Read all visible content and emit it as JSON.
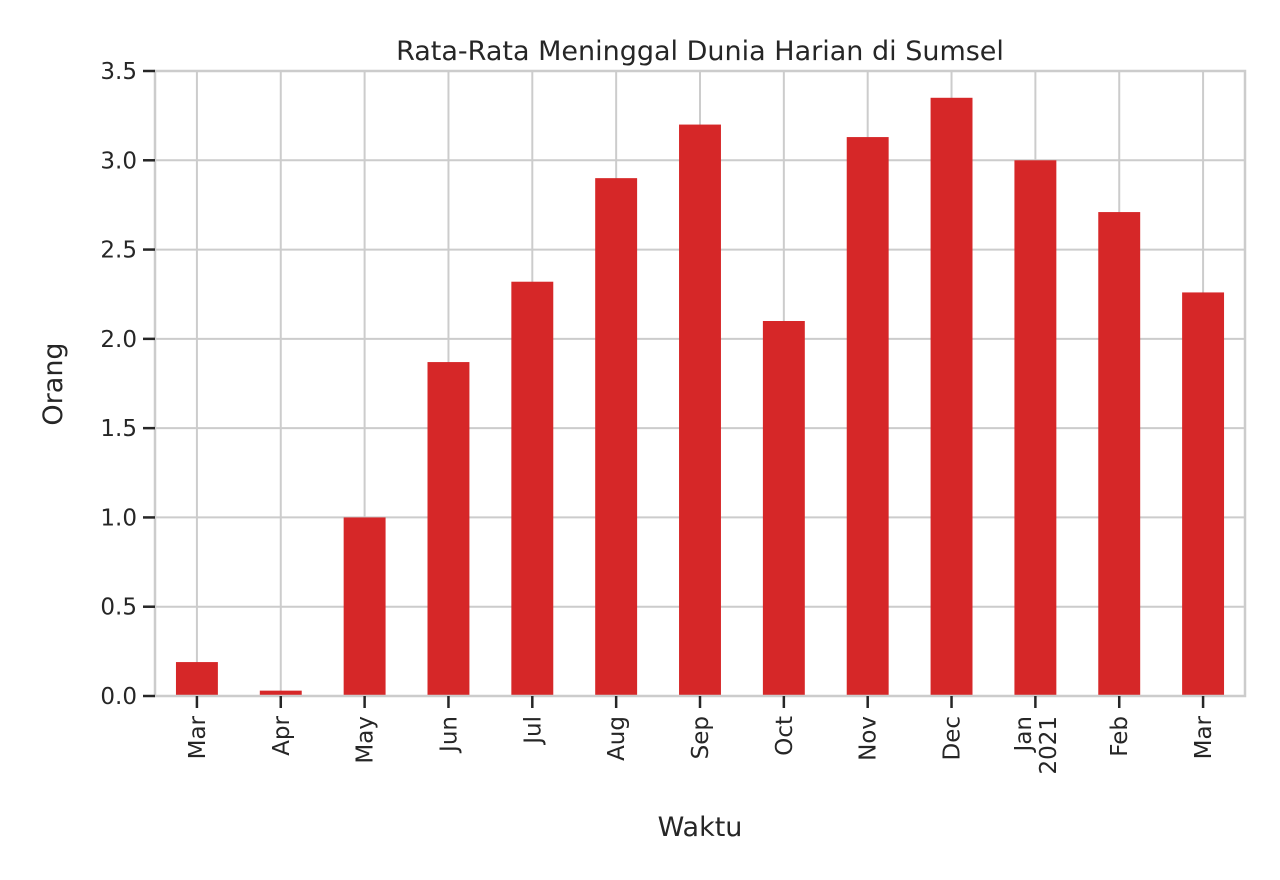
{
  "chart_data": {
    "type": "bar",
    "title": "Rata-Rata Meninggal Dunia Harian di Sumsel",
    "xlabel": "Waktu",
    "ylabel": "Orang",
    "categories": [
      "Mar",
      "Apr",
      "May",
      "Jun",
      "Jul",
      "Aug",
      "Sep",
      "Oct",
      "Nov",
      "Dec",
      "Jan\n2021",
      "Feb",
      "Mar"
    ],
    "values": [
      0.19,
      0.03,
      1.0,
      1.87,
      2.32,
      2.9,
      3.2,
      2.1,
      3.13,
      3.35,
      3.0,
      2.71,
      2.26
    ],
    "ylim": [
      0,
      3.5
    ],
    "yticks": [
      "0.0",
      "0.5",
      "1.0",
      "1.5",
      "2.0",
      "2.5",
      "3.0",
      "3.5"
    ],
    "bar_color": "#d62728",
    "grid": true,
    "legend": "none"
  }
}
